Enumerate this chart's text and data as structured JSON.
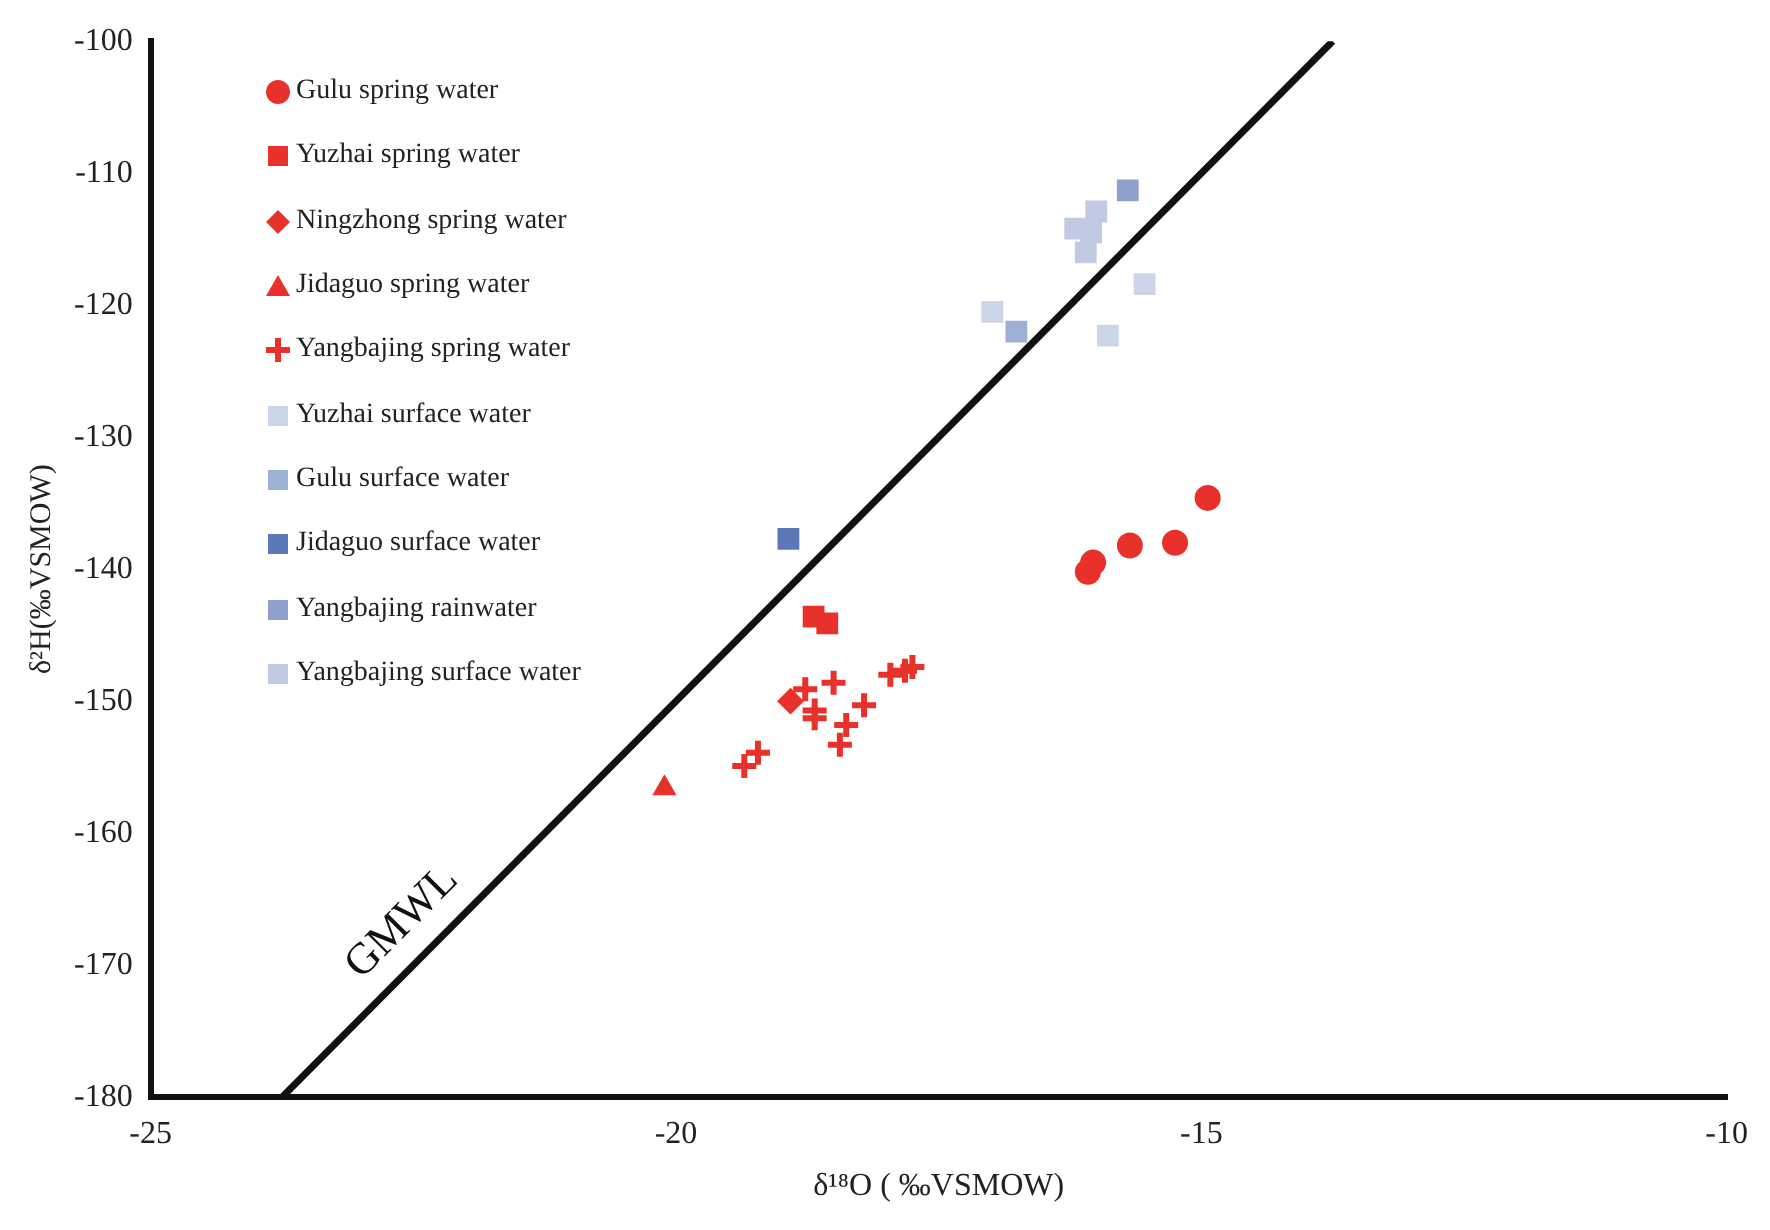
{
  "chart_data": {
    "type": "scatter",
    "xlabel": "δ¹⁸O ( ‰VSMOW)",
    "ylabel": "δ²H(‰VSMOW)",
    "xlim": [
      -25,
      -10
    ],
    "xticks": [
      -25,
      -20,
      -15,
      -10
    ],
    "ylim": [
      -180,
      -100
    ],
    "yticks": [
      -180,
      -170,
      -160,
      -150,
      -140,
      -130,
      -120,
      -110,
      -100
    ],
    "grid": false,
    "legend": "top left",
    "series": [
      {
        "name": "Gulu spring water",
        "color": "#e8312a",
        "marker": "circle",
        "x": [
          -16.08,
          -16.03,
          -15.68,
          -15.25,
          -14.94
        ],
        "values": [
          -140.2,
          -139.5,
          -138.2,
          -138.0,
          -134.6
        ]
      },
      {
        "name": "Yuzhai spring water",
        "color": "#e8312a",
        "marker": "square",
        "x": [
          -18.69,
          -18.56
        ],
        "values": [
          -143.6,
          -144.1
        ]
      },
      {
        "name": "Ningzhong spring water",
        "color": "#e8312a",
        "marker": "diamond",
        "x": [
          -18.91
        ],
        "values": [
          -150.0
        ]
      },
      {
        "name": "Jidaguo spring water",
        "color": "#e8312a",
        "marker": "triangle",
        "x": [
          -20.11
        ],
        "values": [
          -156.6
        ]
      },
      {
        "name": "Yangbajing spring water",
        "color": "#e8312a",
        "marker": "cross",
        "x": [
          -19.35,
          -19.22,
          -18.77,
          -18.68,
          -18.68,
          -18.5,
          -18.44,
          -18.38,
          -18.21,
          -17.96,
          -17.82,
          -17.75
        ],
        "values": [
          -154.9,
          -153.9,
          -149.1,
          -150.7,
          -151.3,
          -148.6,
          -153.3,
          -151.8,
          -150.3,
          -148.0,
          -147.7,
          -147.4
        ]
      },
      {
        "name": "Yuzhai surface water",
        "color": "#cdd5e8",
        "marker": "square",
        "x": [
          -16.99,
          -15.54,
          -15.89
        ],
        "values": [
          -120.5,
          -118.4,
          -122.3
        ]
      },
      {
        "name": "Gulu surface water",
        "color": "#9fb0d6",
        "marker": "square",
        "x": [
          -16.76
        ],
        "values": [
          -122.0
        ]
      },
      {
        "name": "Jidaguo surface water",
        "color": "#5b78b8",
        "marker": "square",
        "x": [
          -18.93
        ],
        "values": [
          -137.7
        ]
      },
      {
        "name": "Yangbajing rainwater",
        "color": "#8fa0cc",
        "marker": "square",
        "x": [
          -15.7
        ],
        "values": [
          -111.3
        ]
      },
      {
        "name": "Yangbajing surface water",
        "color": "#c0cae2",
        "marker": "square",
        "x": [
          -16.2,
          -16.0,
          -16.1,
          -16.05
        ],
        "values": [
          -114.2,
          -112.9,
          -116.0,
          -114.5
        ]
      },
      {
        "name": "GMWL",
        "type": "line",
        "color": "#111111",
        "marker": "none",
        "line_style": "solid",
        "x": [
          -23.75,
          -13.75
        ],
        "values": [
          -180,
          -100
        ]
      }
    ]
  }
}
